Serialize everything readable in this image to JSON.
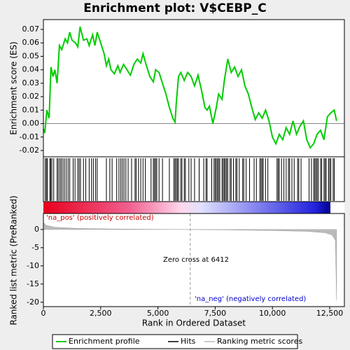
{
  "chart_data": [
    {
      "type": "line",
      "title": "Enrichment plot: V$CEBP_C",
      "ylabel": "Enrichment score (ES)",
      "xlim": [
        0,
        13142
      ],
      "ylim": [
        -0.0247,
        0.0773
      ],
      "yticks": [
        -0.02,
        -0.01,
        {
          "value": 0,
          "label": "0.00"
        },
        0.01,
        0.02,
        0.03,
        0.04,
        0.05,
        0.06,
        0.07
      ],
      "zero_line": true,
      "series": [
        {
          "name": "Enrichment profile",
          "color": "#00cc00",
          "x": [
            0,
            60,
            150,
            250,
            330,
            420,
            500,
            600,
            700,
            800,
            950,
            1050,
            1150,
            1250,
            1400,
            1500,
            1600,
            1750,
            1900,
            2000,
            2150,
            2250,
            2350,
            2500,
            2650,
            2750,
            2850,
            2950,
            3100,
            3250,
            3350,
            3500,
            3650,
            3800,
            3950,
            4100,
            4250,
            4350,
            4500,
            4650,
            4800,
            4900,
            5050,
            5200,
            5350,
            5500,
            5650,
            5750,
            5800,
            5900,
            6000,
            6150,
            6300,
            6450,
            6600,
            6750,
            6900,
            7050,
            7150,
            7250,
            7400,
            7550,
            7650,
            7800,
            7900,
            8050,
            8200,
            8350,
            8500,
            8650,
            8800,
            8950,
            9100,
            9250,
            9400,
            9550,
            9700,
            9850,
            10000,
            10150,
            10300,
            10450,
            10600,
            10750,
            10900,
            11050,
            11200,
            11350,
            11500,
            11650,
            11800,
            11950,
            12100,
            12250,
            12400,
            12550,
            12700,
            12800
          ],
          "values": [
            -0.004,
            -0.007,
            0.01,
            0.004,
            0.042,
            0.035,
            0.04,
            0.03,
            0.058,
            0.055,
            0.063,
            0.06,
            0.068,
            0.062,
            0.06,
            0.057,
            0.072,
            0.062,
            0.063,
            0.058,
            0.066,
            0.058,
            0.068,
            0.06,
            0.052,
            0.043,
            0.048,
            0.04,
            0.037,
            0.043,
            0.038,
            0.044,
            0.04,
            0.036,
            0.044,
            0.048,
            0.045,
            0.052,
            0.043,
            0.035,
            0.031,
            0.04,
            0.038,
            0.03,
            0.022,
            0.012,
            0.004,
            0.001,
            0.015,
            0.035,
            0.038,
            0.032,
            0.038,
            0.035,
            0.028,
            0.036,
            0.025,
            0.012,
            0.01,
            0.013,
            0.0,
            0.012,
            0.022,
            0.018,
            0.032,
            0.048,
            0.038,
            0.042,
            0.035,
            0.04,
            0.028,
            0.022,
            0.012,
            0.003,
            0.008,
            0.004,
            0.01,
            0.002,
            -0.01,
            -0.015,
            -0.008,
            -0.012,
            -0.003,
            -0.008,
            0.002,
            -0.008,
            -0.002,
            0.002,
            -0.012,
            -0.018,
            -0.015,
            -0.008,
            -0.005,
            -0.012,
            0.005,
            0.008,
            0.01,
            0.002
          ]
        }
      ]
    },
    {
      "type": "hits",
      "xlim": [
        0,
        13142
      ],
      "series": [
        {
          "name": "Hits",
          "color": "#000000",
          "x": [
            80,
            130,
            170,
            280,
            320,
            370,
            450,
            600,
            650,
            720,
            780,
            850,
            920,
            1000,
            1080,
            1150,
            1300,
            1380,
            1500,
            1560,
            1620,
            1750,
            1850,
            2000,
            2100,
            2180,
            2280,
            2350,
            2750,
            2900,
            3000,
            3200,
            3300,
            3380,
            3450,
            3520,
            3600,
            3700,
            3850,
            4000,
            4050,
            4150,
            4250,
            4350,
            4450,
            4700,
            4800,
            4850,
            4900,
            4950,
            5050,
            5200,
            5500,
            5700,
            5750,
            5800,
            5850,
            5900,
            6000,
            6050,
            6150,
            6200,
            6350,
            6450,
            6600,
            6800,
            7000,
            7100,
            7150,
            7350,
            7450,
            7500,
            7550,
            7600,
            7650,
            7700,
            7800,
            7850,
            7900,
            7950,
            8000,
            8050,
            8150,
            8200,
            8300,
            8400,
            8450,
            8550,
            8700,
            8750,
            8850,
            9000,
            9200,
            9300,
            9450,
            9500,
            9550,
            9600,
            9700,
            9800,
            10200,
            10250,
            10300,
            10400,
            10500,
            10600,
            10700,
            10750,
            10850,
            10950,
            11100,
            11150,
            11250,
            11600,
            11700,
            11800,
            11850,
            11900,
            11950,
            12000,
            12100,
            12150,
            12250,
            12300,
            12350,
            12450,
            12500,
            12550,
            12650,
            12700
          ]
        }
      ]
    },
    {
      "type": "area",
      "xlabel": "Rank in Ordered Dataset",
      "ylabel": "Ranked list metric (PreRanked)",
      "xlim": [
        0,
        13142
      ],
      "ylim": [
        -21.2,
        4.4
      ],
      "xticks": [
        0,
        {
          "value": 2500,
          "label": "2,500"
        },
        {
          "value": 5000,
          "label": "5,000"
        },
        {
          "value": 7500,
          "label": "7,500"
        },
        {
          "value": 10000,
          "label": "10,000"
        },
        {
          "value": 12500,
          "label": "12,500"
        }
      ],
      "yticks": [
        -20,
        -15,
        -10,
        -5,
        0
      ],
      "zero_cross": 6412,
      "annotations": [
        "'na_pos' (positively correlated)",
        "Zero cross at 6412",
        "'na_neg' (negatively correlated)"
      ],
      "series": [
        {
          "name": "Ranking metric scores",
          "color": "#bbbbbb",
          "x": [
            0,
            100,
            500,
            1500,
            3000,
            5000,
            6412,
            8000,
            10000,
            11500,
            12300,
            12600,
            12750,
            12800
          ],
          "values": [
            2,
            1.2,
            0.6,
            0.3,
            0.15,
            0.05,
            0,
            -0.1,
            -0.3,
            -0.5,
            -0.9,
            -1.5,
            -3,
            -19.5
          ]
        }
      ]
    }
  ]
}
